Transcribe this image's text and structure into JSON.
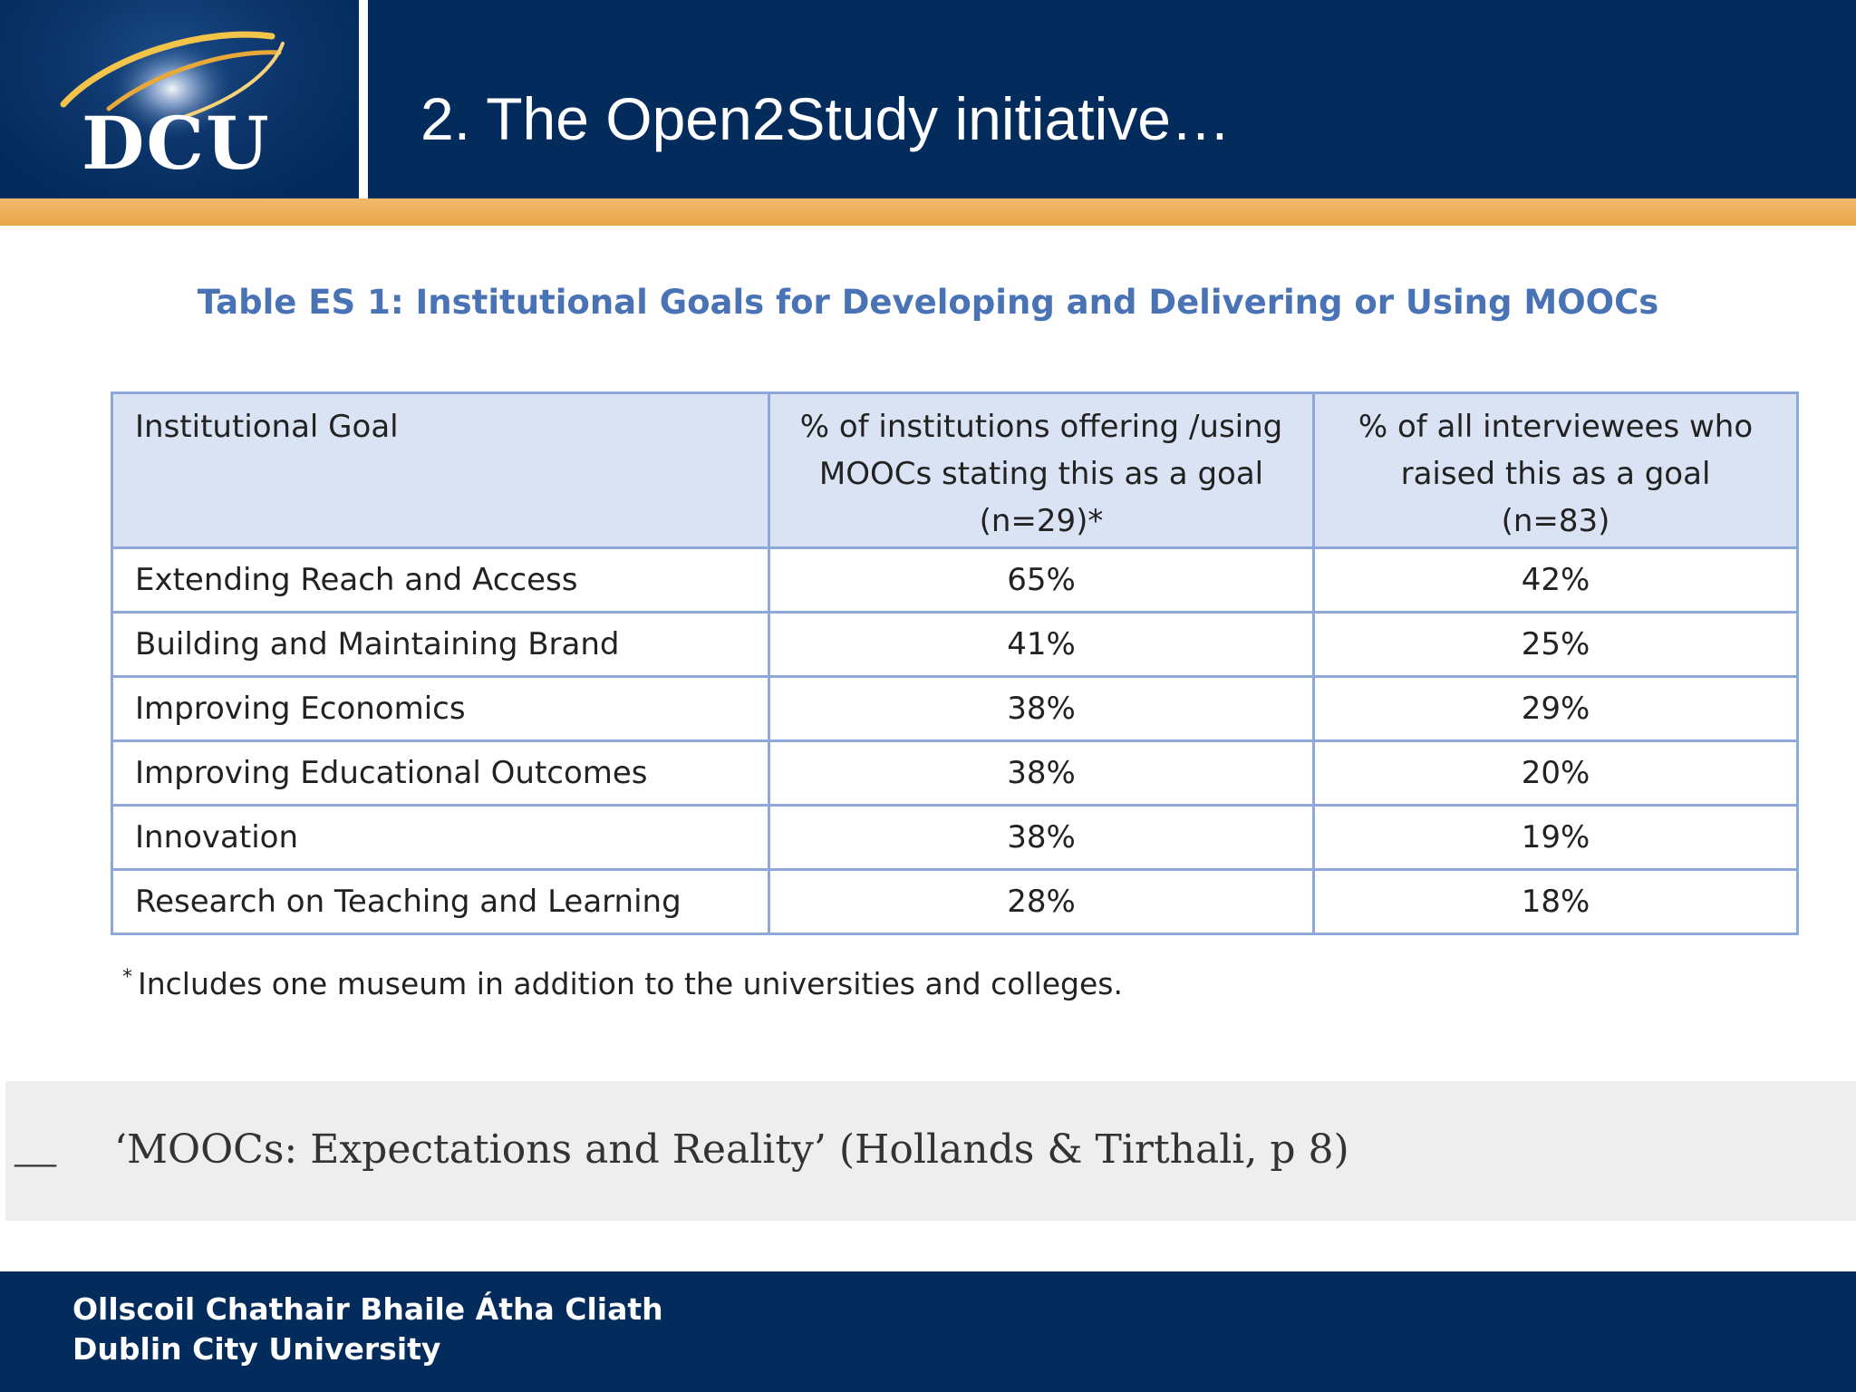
{
  "header": {
    "logo_text": "DCU",
    "title": "2. The Open2Study initiative…"
  },
  "table": {
    "caption": "Table ES 1: Institutional Goals for Developing and Delivering or Using MOOCs",
    "headers": {
      "goal": "Institutional Goal",
      "institutions": {
        "line1": "% of institutions offering /using",
        "line2": "MOOCs stating this as a goal",
        "line3": "(n=29)*"
      },
      "interviewees": {
        "line1": "% of all interviewees who",
        "line2": "raised this as a goal",
        "line3": "(n=83)"
      }
    },
    "rows": [
      {
        "goal": "Extending Reach and Access",
        "institutions": "65%",
        "interviewees": "42%"
      },
      {
        "goal": "Building and Maintaining Brand",
        "institutions": "41%",
        "interviewees": "25%"
      },
      {
        "goal": "Improving Economics",
        "institutions": "38%",
        "interviewees": "29%"
      },
      {
        "goal": "Improving Educational Outcomes",
        "institutions": "38%",
        "interviewees": "20%"
      },
      {
        "goal": "Innovation",
        "institutions": "38%",
        "interviewees": "19%"
      },
      {
        "goal": "Research on Teaching and Learning",
        "institutions": "28%",
        "interviewees": "18%"
      }
    ],
    "footnote_marker": "*",
    "footnote": "Includes one museum in addition to the universities and colleges."
  },
  "quote": {
    "dash": "—",
    "text": "‘MOOCs: Expectations and Reality’ (Hollands & Tirthali, p 8)"
  },
  "footer": {
    "line1": "Ollscoil Chathair Bhaile Átha Cliath",
    "line2": "Dublin City University"
  },
  "colors": {
    "navy": "#032b5c",
    "gold": "#e9a64a",
    "caption_blue": "#4a73b6",
    "table_border": "#8ea9d9",
    "header_fill": "#dae3f3"
  }
}
